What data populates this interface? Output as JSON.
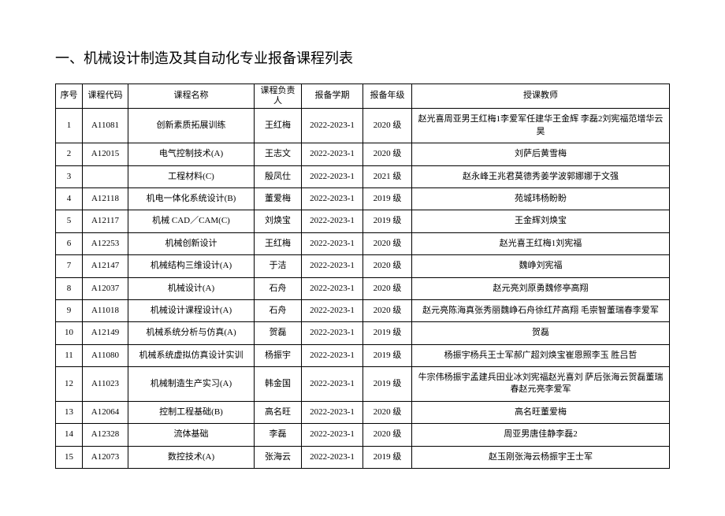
{
  "title": "一、机械设计制造及其自动化专业报备课程列表",
  "headers": {
    "seq": "序号",
    "code": "课程代码",
    "name": "课程名称",
    "leader": "课程负责   人",
    "term": "报备学期",
    "grade": "报备年级",
    "teacher": "授课教师"
  },
  "rows": [
    {
      "seq": "1",
      "code": "A11081",
      "name": "创新素质拓展训练",
      "leader": "王红梅",
      "term": "2022-2023-1",
      "grade": "2020 级",
      "teacher": "赵光喜周亚男王红梅1李爱军任建华王金辉 李磊2刘宪福范增华云昊"
    },
    {
      "seq": "2",
      "code": "A12015",
      "name": "电气控制技术(A)",
      "leader": "王志文",
      "term": "2022-2023-1",
      "grade": "2020 级",
      "teacher": "刘萨后黄雪梅"
    },
    {
      "seq": "3",
      "code": "",
      "name": "工程材料(C)",
      "leader": "殷凤仕",
      "term": "2022-2023-1",
      "grade": "2021 级",
      "teacher": "赵永峰王兆君莫德秀姜学波郭娜娜于文强"
    },
    {
      "seq": "4",
      "code": "A12118",
      "name": "机电一体化系统设计(B)",
      "leader": "董爱梅",
      "term": "2022-2023-1",
      "grade": "2019 级",
      "teacher": "苑城玮杨盼盼"
    },
    {
      "seq": "5",
      "code": "A12117",
      "name": "机械 CAD／CAM(C)",
      "leader": "刘焕宝",
      "term": "2022-2023-1",
      "grade": "2019 级",
      "teacher": "王金辉刘焕宝"
    },
    {
      "seq": "6",
      "code": "A12253",
      "name": "机械创新设计",
      "leader": "王红梅",
      "term": "2022-2023-1",
      "grade": "2020 级",
      "teacher": "赵光喜王红梅1刘宪福"
    },
    {
      "seq": "7",
      "code": "A12147",
      "name": "机械结构三维设计(A)",
      "leader": "于洁",
      "term": "2022-2023-1",
      "grade": "2020 级",
      "teacher": "魏峥刘宪福"
    },
    {
      "seq": "8",
      "code": "A12037",
      "name": "机械设计(A)",
      "leader": "石舟",
      "term": "2022-2023-1",
      "grade": "2020 级",
      "teacher": "赵元亮刘原勇魏修亭高翔"
    },
    {
      "seq": "9",
      "code": "A11018",
      "name": "机械设计课程设计(A)",
      "leader": "石舟",
      "term": "2022-2023-1",
      "grade": "2020 级",
      "teacher": "赵元亮陈海真张秀丽魏峥石舟徐红芹高翔 毛崇智董瑞春李爱军"
    },
    {
      "seq": "10",
      "code": "A12149",
      "name": "机械系统分析与仿真(A)",
      "leader": "贺磊",
      "term": "2022-2023-1",
      "grade": "2019 级",
      "teacher": "贺磊"
    },
    {
      "seq": "11",
      "code": "A11080",
      "name": "机械系统虚拟仿真设计实训",
      "leader": "杨振宇",
      "term": "2022-2023-1",
      "grade": "2019 级",
      "teacher": "杨振宇杨兵王士军郝广超刘焕宝崔恩照李玉 胜吕哲"
    },
    {
      "seq": "12",
      "code": "A11023",
      "name": "机械制造生产实习(A)",
      "leader": "韩金国",
      "term": "2022-2023-1",
      "grade": "2019 级",
      "teacher": "牛宗伟杨振宇孟建兵田业冰刘宪福赵光喜刘 萨后张海云贺磊董瑞春赵元亮李爱军"
    },
    {
      "seq": "13",
      "code": "A12064",
      "name": "控制工程基础(B)",
      "leader": "高名旺",
      "term": "2022-2023-1",
      "grade": "2020 级",
      "teacher": "高名旺董爱梅"
    },
    {
      "seq": "14",
      "code": "A12328",
      "name": "流体基础",
      "leader": "李磊",
      "term": "2022-2023-1",
      "grade": "2020 级",
      "teacher": "周亚男唐佳静李磊2"
    },
    {
      "seq": "15",
      "code": "A12073",
      "name": "数控技术(A)",
      "leader": "张海云",
      "term": "2022-2023-1",
      "grade": "2019 级",
      "teacher": "赵玉刚张海云杨振宇王士军"
    }
  ]
}
